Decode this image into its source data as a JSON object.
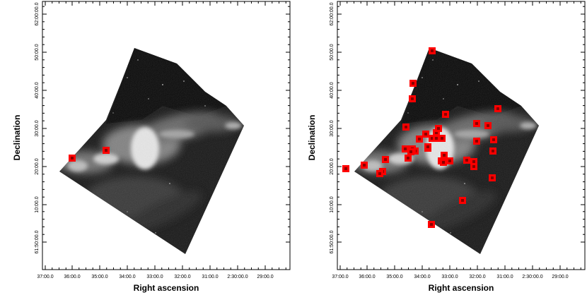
{
  "panels": [
    {
      "id": "left",
      "xlabel": "Right ascension",
      "ylabel": "Declination",
      "x_ticks": [
        "37:00.0",
        "36:00.0",
        "35:00.0",
        "34:00.0",
        "33:00.0",
        "32:00.0",
        "31:00.0",
        "2:30:00.0",
        "29:00.0"
      ],
      "y_ticks": [
        "61:50:00.0",
        "10:00.0",
        "20:00.0",
        "30:00.0",
        "40:00.0",
        "50:00.0",
        "62:00:00.0"
      ],
      "markers": [
        {
          "ra": "36:00.0",
          "dec": "22:00.0"
        },
        {
          "ra": "35:00.0",
          "dec": "24:00.0"
        }
      ]
    },
    {
      "id": "right",
      "xlabel": "Right ascension",
      "ylabel": "Declination",
      "x_ticks": [
        "37:00.0",
        "36:00.0",
        "35:00.0",
        "34:00.0",
        "33:00.0",
        "32:00.0",
        "31:00.0",
        "2:30:00.0",
        "29:00.0"
      ],
      "y_ticks": [
        "61:50:00.0",
        "10:00.0",
        "20:00.0",
        "30:00.0",
        "40:00.0",
        "50:00.0",
        "62:00:00.0"
      ],
      "marker_count": 40
    }
  ],
  "colors": {
    "marker": "#ff0000",
    "frame": "#000000",
    "nebula_dark": "#0b0b0b",
    "nebula_light": "#e6e6e6"
  }
}
